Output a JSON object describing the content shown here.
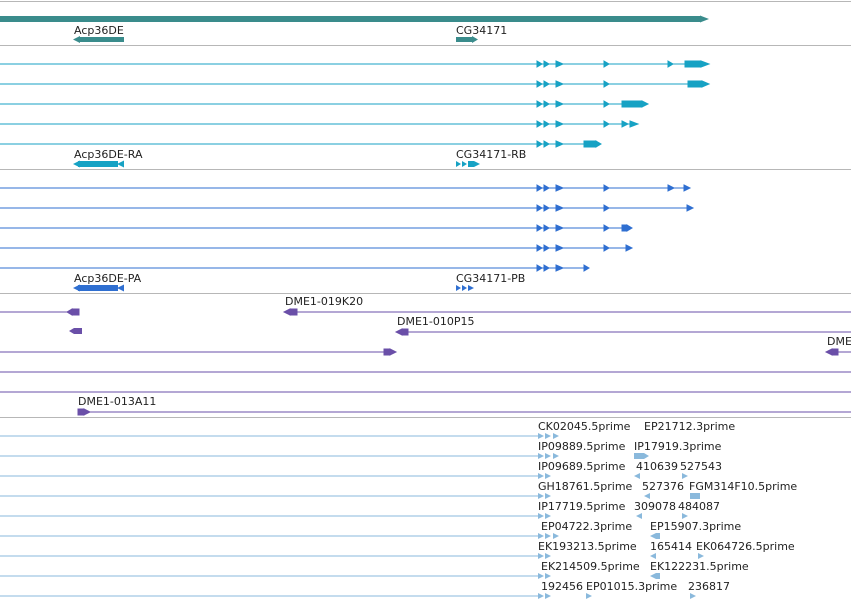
{
  "genes": {
    "gene_a": "Acp36DE",
    "gene_b": "CG34171"
  },
  "transcripts_rna": {
    "label_a": "Acp36DE-RA",
    "label_b": "CG34171-RB"
  },
  "transcripts_protein": {
    "label_a": "Acp36DE-PA",
    "label_b": "CG34171-PB"
  },
  "clones": {
    "c1": "DME1-019K20",
    "c2": "DME1-010P15",
    "c3": "DME",
    "c4": "DME1-013A11"
  },
  "ests": [
    [
      "CK02045.5prime",
      "EP21712.3prime"
    ],
    [
      "IP09889.5prime",
      "IP17919.3prime"
    ],
    [
      "IP09689.5prime",
      "410639",
      "527543"
    ],
    [
      "GH18761.5prime",
      "527376",
      "FGM314F10.5prime"
    ],
    [
      "IP17719.5prime",
      "309078",
      "484087"
    ],
    [
      "EP04722.3prime",
      "EP15907.3prime"
    ],
    [
      "EK193213.5prime",
      "165414",
      "EK064726.5prime"
    ],
    [
      "EK214509.5prime",
      "EK122231.5prime"
    ],
    [
      "192456",
      "EP01015.3prime",
      "236817"
    ]
  ],
  "colors": {
    "gene": "#3a8c8c",
    "rna": "#17a2c4",
    "protein": "#2f6fd1",
    "clone": "#6a4fa8",
    "est": "#8ab9dc",
    "separator": "#b7b7b7"
  }
}
